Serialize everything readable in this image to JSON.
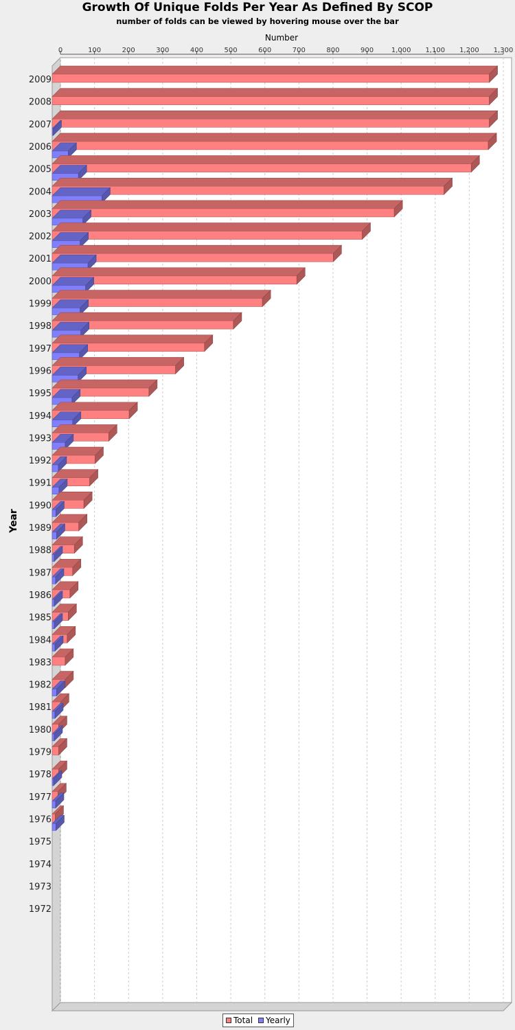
{
  "chart_data": {
    "type": "bar",
    "orientation": "horizontal",
    "style": "3d",
    "title": "Growth Of Unique Folds Per Year As Defined By SCOP",
    "subtitle": "number of folds can be viewed by hovering mouse over the bar",
    "xlabel": "Number",
    "ylabel": "Year",
    "xlim": [
      0,
      1300
    ],
    "xticks": [
      "0",
      "100",
      "200",
      "300",
      "400",
      "500",
      "600",
      "700",
      "800",
      "900",
      "1,000",
      "1,100",
      "1,200",
      "1,300"
    ],
    "grid": true,
    "legend_position": "bottom",
    "categories": [
      "2009",
      "2008",
      "2007",
      "2006",
      "2005",
      "2004",
      "2003",
      "2002",
      "2001",
      "2000",
      "1999",
      "1998",
      "1997",
      "1996",
      "1995",
      "1994",
      "1993",
      "1992",
      "1991",
      "1990",
      "1989",
      "1988",
      "1987",
      "1986",
      "1985",
      "1984",
      "1983",
      "1982",
      "1981",
      "1980",
      "1979",
      "1978",
      "1977",
      "1976",
      "1975",
      "1974",
      "1973",
      "1972"
    ],
    "series": [
      {
        "name": "Total",
        "color": "#ff8080",
        "values": [
          1283,
          1283,
          1283,
          1280,
          1230,
          1150,
          1004,
          910,
          825,
          718,
          617,
          532,
          447,
          362,
          284,
          226,
          166,
          126,
          110,
          93,
          78,
          65,
          60,
          52,
          47,
          44,
          38,
          38,
          25,
          19,
          19,
          19,
          17,
          9,
          0,
          0,
          0,
          0
        ]
      },
      {
        "name": "Yearly",
        "color": "#8080ff",
        "values": [
          0,
          0,
          3,
          47,
          77,
          146,
          90,
          82,
          105,
          98,
          82,
          84,
          80,
          76,
          58,
          60,
          38,
          18,
          20,
          11,
          13,
          6,
          10,
          6,
          6,
          8,
          0,
          13,
          8,
          6,
          0,
          4,
          10,
          11,
          0,
          0,
          0,
          0
        ]
      }
    ]
  }
}
